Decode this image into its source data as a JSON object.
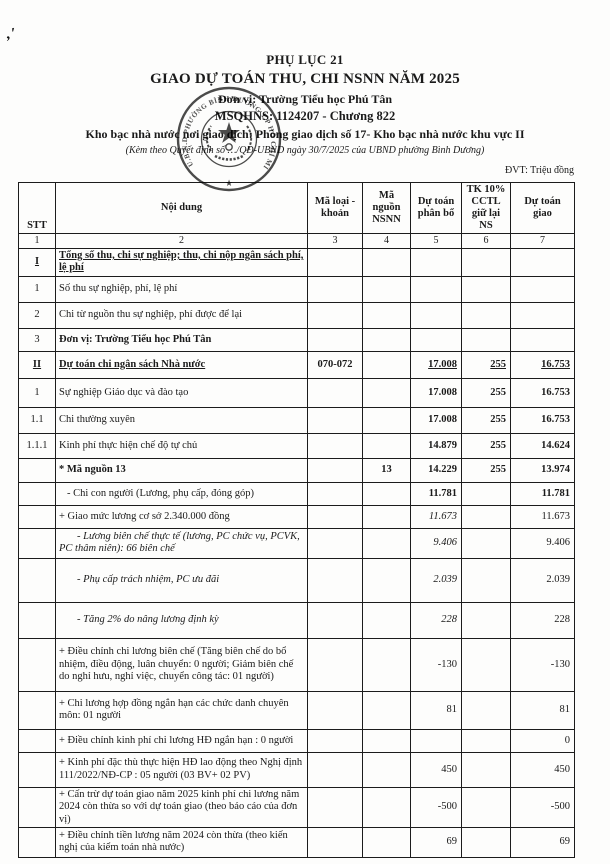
{
  "colors": {
    "ink": "#1a1a1a",
    "paper": "#fdfdfc"
  },
  "annotations": {
    "pen_mark": ",′"
  },
  "header": {
    "appendix": "PHỤ LỤC 21",
    "title": "GIAO DỰ TOÁN THU, CHI NSNN NĂM 2025",
    "unit": "Đơn vị: Trường Tiểu học Phú Tân",
    "code": "MSQHNS: 1124207 - Chương 822",
    "treasury": "Kho bạc nhà nước nơi giao dịch: Phòng giao dịch số 17- Kho bạc nhà nước khu vực II",
    "note": "(Kèm theo Quyết định số …/QĐ-UBND ngày 30/7/2025 của UBND phường Bình Dương)",
    "dvt": "ĐVT: Triệu đồng"
  },
  "stamp": {
    "ring_text": "U.B.N.D PHƯỜNG BÌNH DƯƠNG T.P HỒ CHÍ MINH",
    "star": "★"
  },
  "table": {
    "columns": [
      {
        "label": "STT",
        "num": "1",
        "key": "stt"
      },
      {
        "label": "Nội dung",
        "num": "2",
        "key": "noi-dung"
      },
      {
        "label": "Mã loại - khoản",
        "num": "3",
        "key": "ma-loai-khoan"
      },
      {
        "label": "Mã nguồn NSNN",
        "num": "4",
        "key": "ma-nguon-nsnn"
      },
      {
        "label": "Dự toán phân bổ",
        "num": "5",
        "key": "du-toan-phan-bo"
      },
      {
        "label": "TK 10% CCTL giữ lại NS",
        "num": "6",
        "key": "tk-10-cctl-giu-lai-ns"
      },
      {
        "label": "Dự toán giao",
        "num": "7",
        "key": "du-toan-giao"
      }
    ],
    "rows": [
      {
        "stt": "I",
        "sttCls": "b u",
        "content": "Tổng số thu, chi sự nghiệp; thu, chi nộp ngân sách phí, lệ phí",
        "cCls": "b u",
        "h": 28
      },
      {
        "stt": "1",
        "content": "Số thu sự nghiệp, phí, lệ phí",
        "h": 26
      },
      {
        "stt": "2",
        "content": "Chi từ nguồn thu sự nghiệp, phí được để lại",
        "h": 26
      },
      {
        "stt": "3",
        "content": "Đơn vị: Trường Tiểu học Phú Tân",
        "cCls": "b big",
        "h": 23
      },
      {
        "stt": "II",
        "sttCls": "b u",
        "content": "Dự toán chi ngân sách Nhà nước",
        "cCls": "b u",
        "c3": "070-072",
        "c3Cls": "b",
        "c5": "17.008",
        "c6": "255",
        "c7": "16.753",
        "numCls": "b u",
        "h": 27
      },
      {
        "stt": "1",
        "content": "Sự nghiệp Giáo dục và đào tạo",
        "c5": "17.008",
        "c6": "255",
        "c7": "16.753",
        "numCls": "b",
        "h": 29
      },
      {
        "stt": "1.1",
        "content": "Chi thường xuyên",
        "c5": "17.008",
        "c6": "255",
        "c7": "16.753",
        "numCls": "b",
        "h": 26
      },
      {
        "stt": "1.1.1",
        "content": "Kinh phí thực hiện chế độ tự chủ",
        "c5": "14.879",
        "c6": "255",
        "c7": "14.624",
        "numCls": "b",
        "h": 25
      },
      {
        "content": "* Mã nguồn 13",
        "cCls": "b",
        "c4": "13",
        "c4Cls": "b",
        "c5": "14.229",
        "c6": "255",
        "c7": "13.974",
        "numCls": "b",
        "h": 24
      },
      {
        "content": "- Chi con người (Lương, phụ cấp, đóng góp)",
        "cCls": "big2 ind1",
        "c5": "11.781",
        "c7": "11.781",
        "numCls": "b",
        "h": 23
      },
      {
        "content": "+ Giao mức lương cơ sở 2.340.000 đồng",
        "c5": "11.673",
        "c5Cls": "i",
        "c7": "11.673",
        "h": 23
      },
      {
        "content": "- Lương biên chế thực tế (lương, PC chức vụ, PCVK, PC thâm niên): 66 biên chế",
        "cCls": "i ind2",
        "c5": "9.406",
        "c5Cls": "i",
        "c7": "9.406",
        "h": 30
      },
      {
        "content": "- Phụ cấp trách nhiệm, PC ưu đãi",
        "cCls": "i ind2",
        "c5": "2.039",
        "c5Cls": "i",
        "c7": "2.039",
        "h": 44
      },
      {
        "content": "- Tăng 2% do nâng lương định kỳ",
        "cCls": "i ind2",
        "c5": "228",
        "c5Cls": "i",
        "c7": "228",
        "h": 36
      },
      {
        "content": "+ Điều chỉnh chi lương biên chế (Tăng biên chế do bổ nhiệm, điều động, luân chuyển: 0 người; Giảm biên chế do nghỉ hưu, nghỉ việc, chuyển công tác:  01 người)",
        "c5": "-130",
        "c7": "-130",
        "h": 53
      },
      {
        "content": "+ Chi lương hợp đồng ngắn hạn các chức danh chuyên môn: 01 người",
        "c5": "81",
        "c7": "81",
        "h": 38
      },
      {
        "content": "+ Điều chỉnh kinh phí chi lương HĐ ngắn hạn : 0 người",
        "c7": "0",
        "h": 23
      },
      {
        "content": "+ Kinh phí đặc thù thực hiện HĐ lao động theo Nghị định 111/2022/NĐ-CP : 05 người (03 BV+ 02 PV)",
        "c5": "450",
        "c7": "450",
        "h": 35
      },
      {
        "content": "+ Cấn trừ dự toán giao năm 2025 kinh phí chi lương năm 2024 còn thừa so với dự toán giao (theo báo cáo của đơn vị)",
        "c5": "-500",
        "c7": "-500",
        "h": 36
      },
      {
        "content": "+ Điều chỉnh tiền lương năm 2024 còn thừa (theo kiến nghị của kiểm toán nhà nước)",
        "c5": "69",
        "c7": "69",
        "h": 30
      }
    ]
  }
}
